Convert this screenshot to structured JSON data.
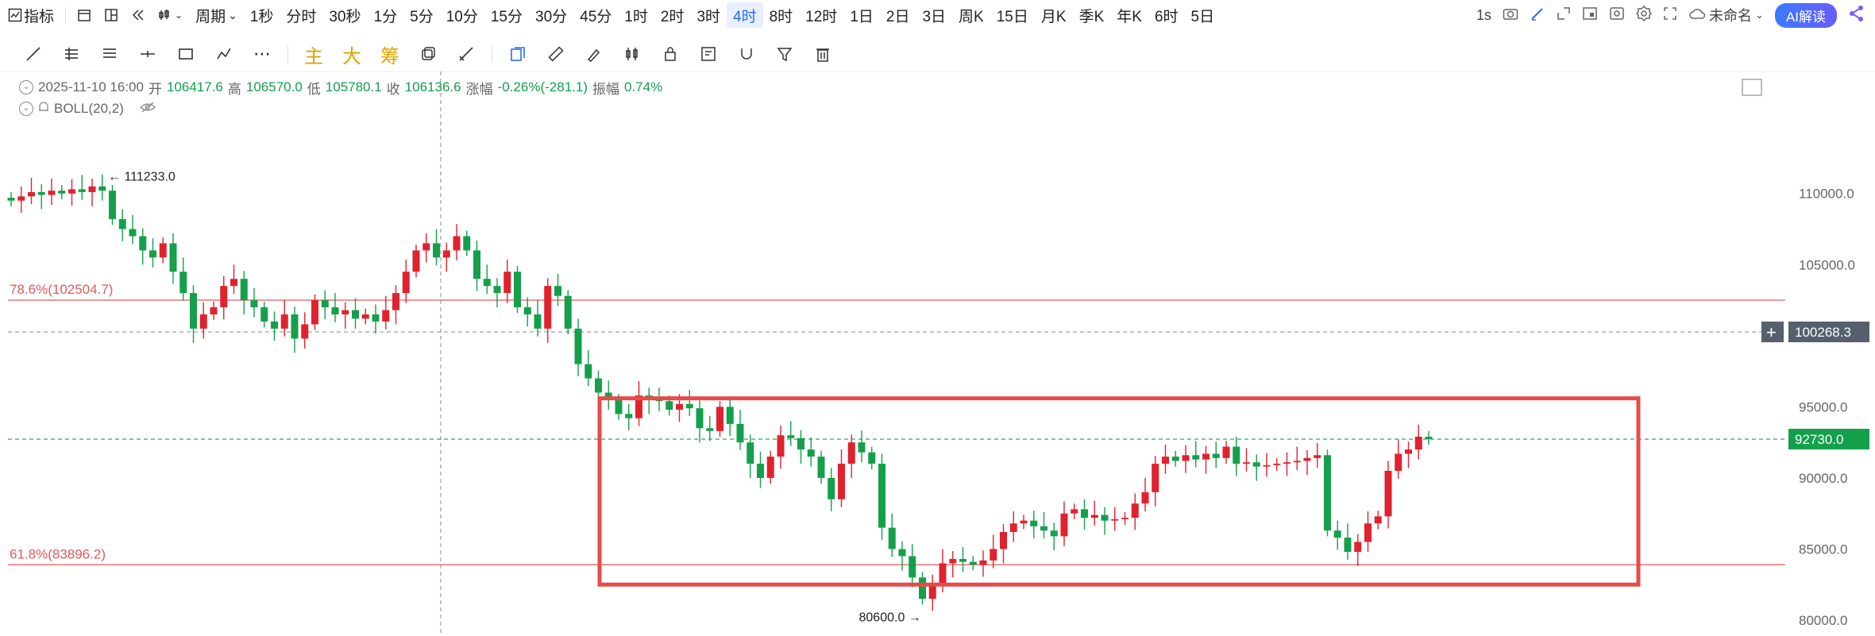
{
  "topbar": {
    "indicator_label": "指标",
    "period_label": "周期",
    "periods": [
      "1秒",
      "分时",
      "30秒",
      "1分",
      "5分",
      "10分",
      "15分",
      "30分",
      "45分",
      "1时",
      "2时",
      "3时",
      "4时",
      "8时",
      "12时",
      "1日",
      "2日",
      "3日",
      "周K",
      "15日",
      "月K",
      "季K",
      "年K",
      "6时",
      "5日"
    ],
    "active_period": "4时"
  },
  "rightbar": {
    "interval": "1s",
    "layout_name": "未命名",
    "ai_label": "AI解读"
  },
  "toolbar2": {
    "main_label": "主",
    "big_label": "大",
    "chip_label": "筹"
  },
  "infobar": {
    "datetime": "2025-11-10 16:00",
    "open_label": "开",
    "open": "106417.6",
    "high_label": "高",
    "high": "106570.0",
    "low_label": "低",
    "low": "105780.1",
    "close_label": "收",
    "close": "106136.6",
    "change_label": "涨幅",
    "change": "-0.26%(-281.1)",
    "amp_label": "振幅",
    "amp": "0.74%"
  },
  "boll": {
    "label": "BOLL(20,2)"
  },
  "colors": {
    "up": "#e0222f",
    "down": "#14a04b",
    "fib": "#e05a5a",
    "box": "#e84a4a",
    "current_price": "#14a04b"
  },
  "chart_data": {
    "type": "candlestick",
    "ylim": [
      79500,
      113000
    ],
    "y_ticks": [
      "110000.0",
      "105000.0",
      "100000.0",
      "95000.0",
      "90000.0",
      "85000.0",
      "80000.0"
    ],
    "y_tick_values": [
      110000,
      105000,
      100000,
      95000,
      90000,
      85000,
      80000
    ],
    "fib_levels": [
      {
        "label": "78.6%(102504.7)",
        "value": 102504.7
      },
      {
        "label": "61.8%(83896.2)",
        "value": 83896.2
      }
    ],
    "crosshair_price": {
      "label": "100268.3",
      "value": 100268.3
    },
    "current_price": {
      "label": "92730.0",
      "value": 92730.0
    },
    "max_label": "111233.0",
    "min_label": "80600.0",
    "closes": [
      109500,
      109800,
      110100,
      109900,
      110200,
      110000,
      110300,
      110100,
      110500,
      110200,
      108200,
      107500,
      107000,
      106000,
      105500,
      106500,
      104500,
      103000,
      100500,
      101500,
      102000,
      103500,
      104000,
      102500,
      102000,
      101000,
      100500,
      101500,
      99800,
      100800,
      102500,
      102000,
      101500,
      101800,
      101200,
      101500,
      101000,
      101800,
      103000,
      104500,
      106000,
      106500,
      105500,
      106000,
      107000,
      106000,
      104000,
      103500,
      103000,
      104500,
      102000,
      101500,
      100500,
      103500,
      102800,
      100500,
      98000,
      97000,
      96000,
      95500,
      94500,
      94200,
      95800,
      95500,
      95400,
      94800,
      95200,
      94900,
      93500,
      93300,
      95000,
      93800,
      92500,
      91000,
      90000,
      91500,
      93000,
      92800,
      92000,
      91500,
      90000,
      88500,
      91000,
      92500,
      91800,
      91000,
      86500,
      85000,
      84500,
      83000,
      81500,
      82500,
      84000,
      84300,
      84100,
      83900,
      84200,
      85000,
      86200,
      86800,
      87000,
      86600,
      86300,
      85900,
      87500,
      87800,
      87200,
      87400,
      87000,
      87100,
      87200,
      88200,
      89000,
      91000,
      91500,
      91200,
      91600,
      91300,
      91700,
      91400,
      92200,
      91000,
      91100,
      90800,
      90900,
      91000,
      91100,
      91200,
      91400,
      91600,
      86300,
      85800,
      84800,
      85500,
      86800,
      87300,
      90500,
      91700,
      92000,
      92900,
      92730
    ],
    "plot_area": {}
  },
  "annotation_box": {
    "label": ""
  }
}
